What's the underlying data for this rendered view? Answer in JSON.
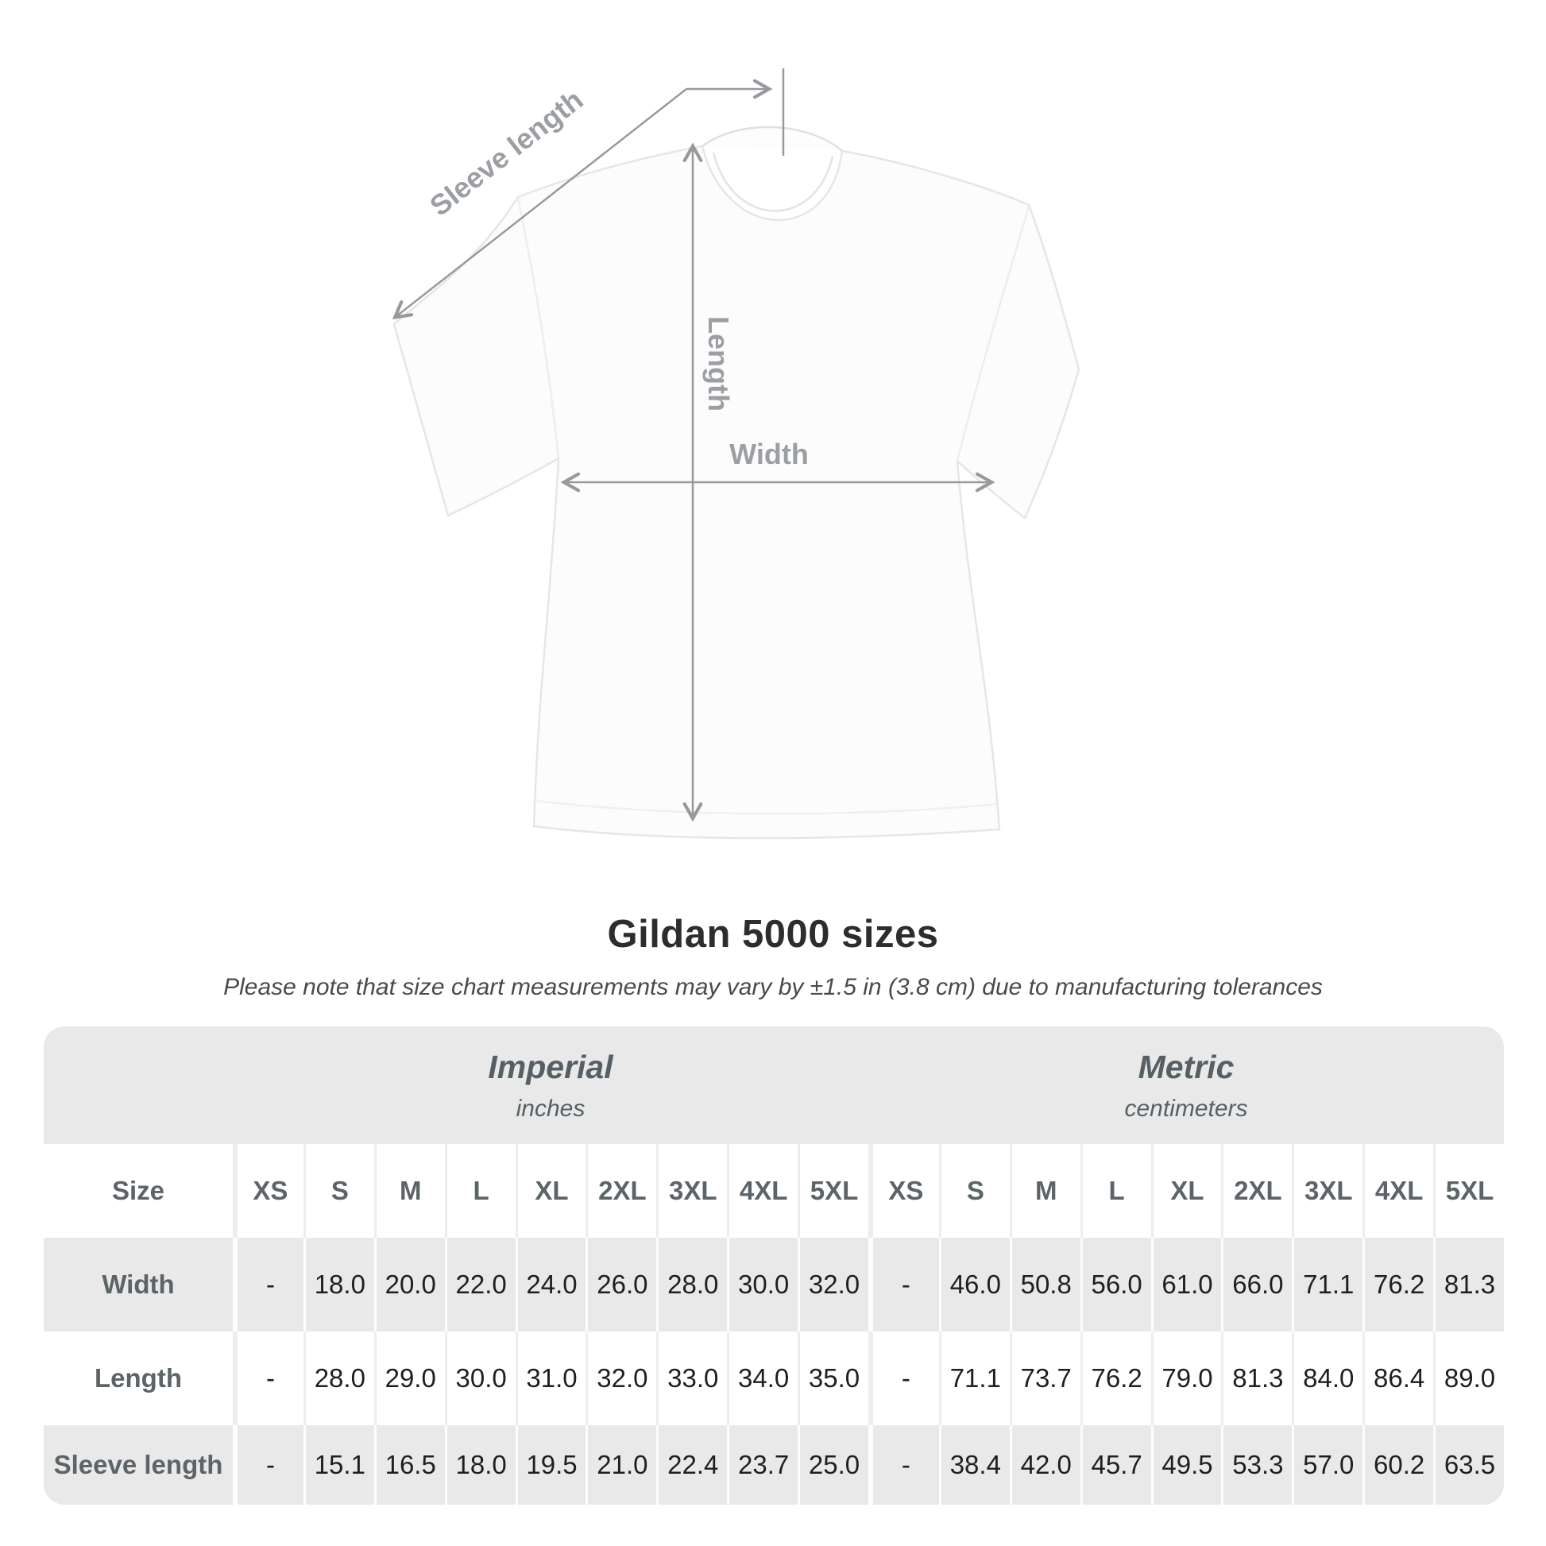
{
  "diagram": {
    "sleeve_length_label": "Sleeve length",
    "length_label": "Length",
    "width_label": "Width"
  },
  "heading": {
    "title": "Gildan 5000 sizes",
    "subtitle": "Please note that size chart measurements may vary by ±1.5 in (3.8 cm) due to manufacturing tolerances"
  },
  "table": {
    "size_column_header": "Size",
    "groups": [
      {
        "name": "Imperial",
        "unit": "inches"
      },
      {
        "name": "Metric",
        "unit": "centimeters"
      }
    ],
    "sizes": [
      "XS",
      "S",
      "M",
      "L",
      "XL",
      "2XL",
      "3XL",
      "4XL",
      "5XL"
    ],
    "rows": [
      {
        "label": "Width",
        "imperial": [
          "-",
          "18.0",
          "20.0",
          "22.0",
          "24.0",
          "26.0",
          "28.0",
          "30.0",
          "32.0"
        ],
        "metric": [
          "-",
          "46.0",
          "50.8",
          "56.0",
          "61.0",
          "66.0",
          "71.1",
          "76.2",
          "81.3"
        ]
      },
      {
        "label": "Length",
        "imperial": [
          "-",
          "28.0",
          "29.0",
          "30.0",
          "31.0",
          "32.0",
          "33.0",
          "34.0",
          "35.0"
        ],
        "metric": [
          "-",
          "71.1",
          "73.7",
          "76.2",
          "79.0",
          "81.3",
          "84.0",
          "86.4",
          "89.0"
        ]
      },
      {
        "label": "Sleeve length",
        "imperial": [
          "-",
          "15.1",
          "16.5",
          "18.0",
          "19.5",
          "21.0",
          "22.4",
          "23.7",
          "25.0"
        ],
        "metric": [
          "-",
          "38.4",
          "42.0",
          "45.7",
          "49.5",
          "53.3",
          "57.0",
          "60.2",
          "63.5"
        ]
      }
    ]
  },
  "chart_data": {
    "type": "table",
    "title": "Gildan 5000 sizes",
    "note": "Please note that size chart measurements may vary by ±1.5 in (3.8 cm) due to manufacturing tolerances",
    "units": {
      "imperial": "inches",
      "metric": "centimeters"
    },
    "sizes": [
      "XS",
      "S",
      "M",
      "L",
      "XL",
      "2XL",
      "3XL",
      "4XL",
      "5XL"
    ],
    "measurements": [
      {
        "name": "Width",
        "imperial_in": [
          null,
          18.0,
          20.0,
          22.0,
          24.0,
          26.0,
          28.0,
          30.0,
          32.0
        ],
        "metric_cm": [
          null,
          46.0,
          50.8,
          56.0,
          61.0,
          66.0,
          71.1,
          76.2,
          81.3
        ]
      },
      {
        "name": "Length",
        "imperial_in": [
          null,
          28.0,
          29.0,
          30.0,
          31.0,
          32.0,
          33.0,
          34.0,
          35.0
        ],
        "metric_cm": [
          null,
          71.1,
          73.7,
          76.2,
          79.0,
          81.3,
          84.0,
          86.4,
          89.0
        ]
      },
      {
        "name": "Sleeve length",
        "imperial_in": [
          null,
          15.1,
          16.5,
          18.0,
          19.5,
          21.0,
          22.4,
          23.7,
          25.0
        ],
        "metric_cm": [
          null,
          38.4,
          42.0,
          45.7,
          49.5,
          53.3,
          57.0,
          60.2,
          63.5
        ]
      }
    ],
    "colors": {
      "row_stripe": "#e9e9e9",
      "value_text": "#1f1f1f",
      "label_text": "#5c6467",
      "measure_lines": "#97999c"
    }
  }
}
